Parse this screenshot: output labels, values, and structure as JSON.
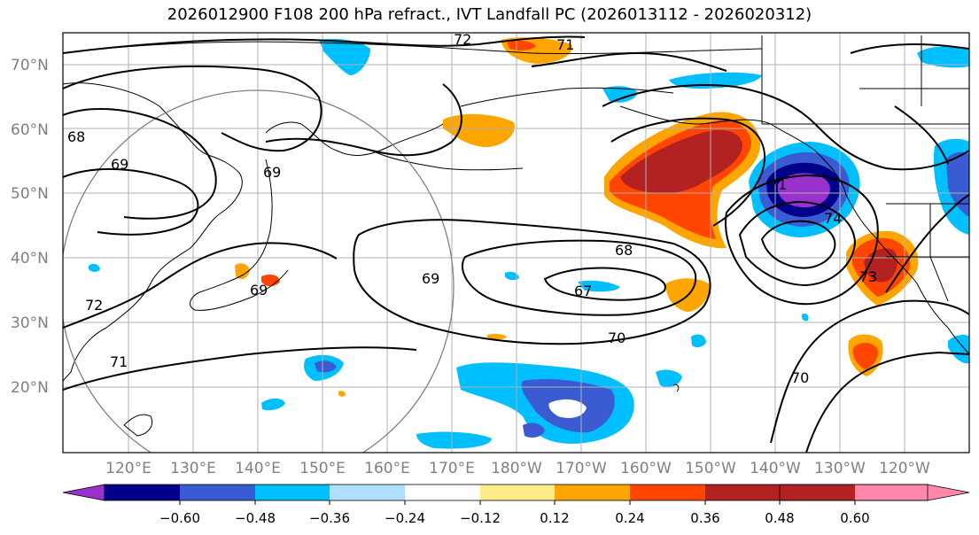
{
  "title": "2026012900 F108 200 hPa refract., IVT Landfall PC (2026013112 - 2026020312)",
  "map": {
    "lat_ticks": [
      "70°N",
      "60°N",
      "50°N",
      "40°N",
      "30°N",
      "20°N"
    ],
    "lon_ticks": [
      "120°E",
      "130°E",
      "140°E",
      "150°E",
      "160°E",
      "170°E",
      "180°W",
      "170°W",
      "160°W",
      "150°W",
      "140°W",
      "130°W",
      "120°W"
    ],
    "contour_labels": [
      "72",
      "71",
      "68",
      "69",
      "69",
      "68",
      "67",
      "70",
      "70",
      "71",
      "74",
      "73",
      "72",
      "71",
      "69",
      "69"
    ]
  },
  "colorbar": {
    "ticks": [
      "−0.60",
      "−0.48",
      "−0.36",
      "−0.24",
      "−0.12",
      "0.12",
      "0.24",
      "0.36",
      "0.48",
      "0.60"
    ],
    "colors": [
      "#9932cc",
      "#00008b",
      "#3a5bd1",
      "#00bfff",
      "#b0e0ff",
      "#ffffff",
      "#ffeb8a",
      "#ffa500",
      "#ff4500",
      "#b22222",
      "#ff88aa"
    ]
  }
}
